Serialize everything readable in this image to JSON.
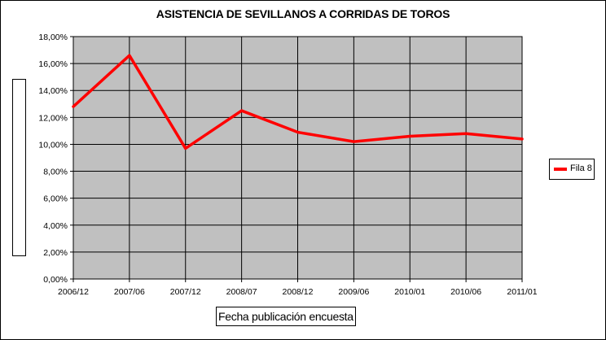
{
  "chart_data": {
    "type": "line",
    "title": "ASISTENCIA DE SEVILLANOS A CORRIDAS DE TOROS",
    "xlabel": "Fecha publicación encuesta",
    "ylabel": "",
    "categories": [
      "2006/12",
      "2007/06",
      "2007/12",
      "2008/07",
      "2008/12",
      "2009/06",
      "2010/01",
      "2010/06",
      "2011/01"
    ],
    "ylim": [
      0,
      18
    ],
    "yticks": [
      "0,00%",
      "2,00%",
      "4,00%",
      "6,00%",
      "8,00%",
      "10,00%",
      "12,00%",
      "14,00%",
      "16,00%",
      "18,00%"
    ],
    "series": [
      {
        "name": "Fila 8",
        "color": "#ff0000",
        "values": [
          12.8,
          16.6,
          9.7,
          12.5,
          10.9,
          10.2,
          10.6,
          10.8,
          10.4
        ]
      }
    ],
    "grid": true,
    "plot_background": "#c0c0c0",
    "legend_position": "right"
  }
}
